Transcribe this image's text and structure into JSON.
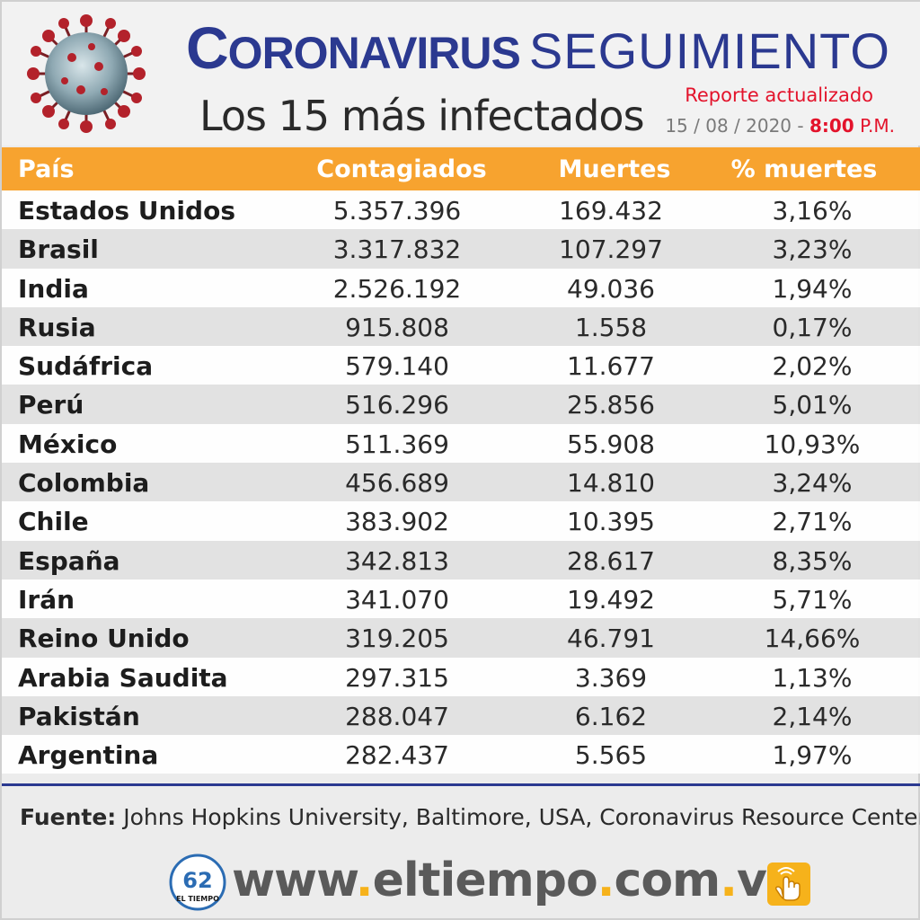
{
  "header": {
    "title_main": "Coronavirus",
    "title_secondary": "SEGUIMIENTO",
    "subtitle": "Los 15 más infectados",
    "report_label": "Reporte actualizado",
    "date": "15 / 08 / 2020 -",
    "time": "8:00",
    "ampm": "P.M."
  },
  "table": {
    "headers": [
      "País",
      "Contagiados",
      "Muertes",
      "% muertes"
    ],
    "rows": [
      {
        "pais": "Estados Unidos",
        "contagiados": "5.357.396",
        "muertes": "169.432",
        "pct": "3,16%"
      },
      {
        "pais": "Brasil",
        "contagiados": "3.317.832",
        "muertes": "107.297",
        "pct": "3,23%"
      },
      {
        "pais": "India",
        "contagiados": "2.526.192",
        "muertes": "49.036",
        "pct": "1,94%"
      },
      {
        "pais": "Rusia",
        "contagiados": "915.808",
        "muertes": "1.558",
        "pct": "0,17%"
      },
      {
        "pais": "Sudáfrica",
        "contagiados": "579.140",
        "muertes": "11.677",
        "pct": "2,02%"
      },
      {
        "pais": "Perú",
        "contagiados": "516.296",
        "muertes": "25.856",
        "pct": "5,01%"
      },
      {
        "pais": "México",
        "contagiados": "511.369",
        "muertes": "55.908",
        "pct": "10,93%"
      },
      {
        "pais": "Colombia",
        "contagiados": "456.689",
        "muertes": "14.810",
        "pct": "3,24%"
      },
      {
        "pais": "Chile",
        "contagiados": "383.902",
        "muertes": "10.395",
        "pct": "2,71%"
      },
      {
        "pais": "España",
        "contagiados": "342.813",
        "muertes": "28.617",
        "pct": "8,35%"
      },
      {
        "pais": "Irán",
        "contagiados": "341.070",
        "muertes": "19.492",
        "pct": "5,71%"
      },
      {
        "pais": "Reino Unido",
        "contagiados": "319.205",
        "muertes": "46.791",
        "pct": "14,66%"
      },
      {
        "pais": "Arabia Saudita",
        "contagiados": "297.315",
        "muertes": "3.369",
        "pct": "1,13%"
      },
      {
        "pais": "Pakistán",
        "contagiados": "288.047",
        "muertes": "6.162",
        "pct": "2,14%"
      },
      {
        "pais": "Argentina",
        "contagiados": "282.437",
        "muertes": "5.565",
        "pct": "1,97%"
      }
    ]
  },
  "source": {
    "label": "Fuente:",
    "text": "Johns Hopkins University, Baltimore, USA, Coronavirus Resource Center"
  },
  "footer": {
    "url_part1": "www",
    "url_part2": "eltiempo",
    "url_part3": "com",
    "url_part4": "ve",
    "dot": ".",
    "logo_number": "62",
    "logo_text": "EL TIEMPO"
  },
  "colors": {
    "title_blue": "#2b3990",
    "header_orange": "#f7a32f",
    "accent_red": "#e3132b",
    "url_dot_yellow": "#f6b21b"
  },
  "icons": [
    "coronavirus-icon",
    "eltiempo-logo-icon",
    "pointer-hand-icon"
  ]
}
